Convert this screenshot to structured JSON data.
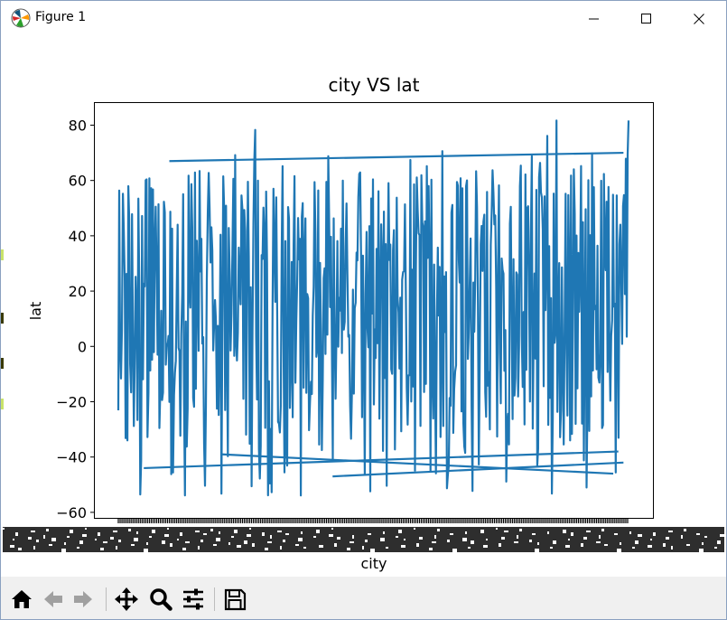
{
  "window": {
    "title": "Figure 1"
  },
  "toolbar": {
    "tools": [
      "home-icon",
      "back-icon",
      "forward-icon",
      "pan-icon",
      "zoom-icon",
      "configure-subplots-icon",
      "save-icon"
    ]
  },
  "colors": {
    "line": "#1f77b4",
    "axes": "#000000",
    "toolbar_bg": "#f0f0f0",
    "toolbar_icon": "#000000",
    "toolbar_icon_disabled": "#a0a0a0"
  },
  "chart_data": {
    "type": "line",
    "title": "city VS lat",
    "xlabel": "city",
    "ylabel": "lat",
    "ylim": [
      -62,
      88
    ],
    "yticks": [
      -60,
      -40,
      -20,
      0,
      20,
      40,
      60,
      80
    ],
    "grid": false,
    "legend": "none",
    "x_tick_labels": "overlapping city names (illegible)",
    "series": [
      {
        "color": "#1f77b4",
        "n_points": 560,
        "y_min": -54.5,
        "y_max": 81.7,
        "typical_range": [
          -38,
          62
        ],
        "y_values_sample": [
          -23.1,
          55.2,
          -34.0,
          47.8,
          12.5,
          -41.2,
          60.1,
          -8.7,
          36.4,
          -29.5,
          52.3,
          3.8,
          -45.6,
          44.0,
          18.9,
          -36.2,
          58.7,
          -15.3,
          27.1,
          -50.4,
          49.9,
          7.6,
          -24.8,
          61.5,
          -39.7,
          33.2,
          -5.1,
          54.6,
          -31.9,
          21.4,
          78.3,
          -47.8,
          41.7,
          -12.6,
          57.0,
          -27.3,
          65.2,
          -43.1,
          30.5,
          9.2,
          -53.9,
          46.3,
          -19.8,
          59.4,
          -35.5,
          24.7,
          68.8,
          -40.6,
          38.1,
          -2.4,
          51.7,
          -33.4,
          15.8,
          62.9,
          -46.2,
          43.5,
          -21.0,
          56.1,
          -37.8,
          29.3,
          -9.9,
          53.8,
          -30.7,
          19.6,
          67.4,
          -44.9,
          40.2,
          -16.5,
          58.0,
          -26.1,
          35.7,
          70.6,
          -51.3,
          48.4,
          -6.8,
          60.8,
          -38.5,
          22.9,
          5.3,
          -42.7,
          45.1,
          -14.2,
          63.7,
          -32.6,
          31.8,
          -48.9,
          50.5,
          -11.4,
          57.9,
          -28.2,
          26.6,
          1.7,
          -36.9,
          42.3,
          76.1,
          -53.2,
          81.7
        ]
      }
    ]
  }
}
